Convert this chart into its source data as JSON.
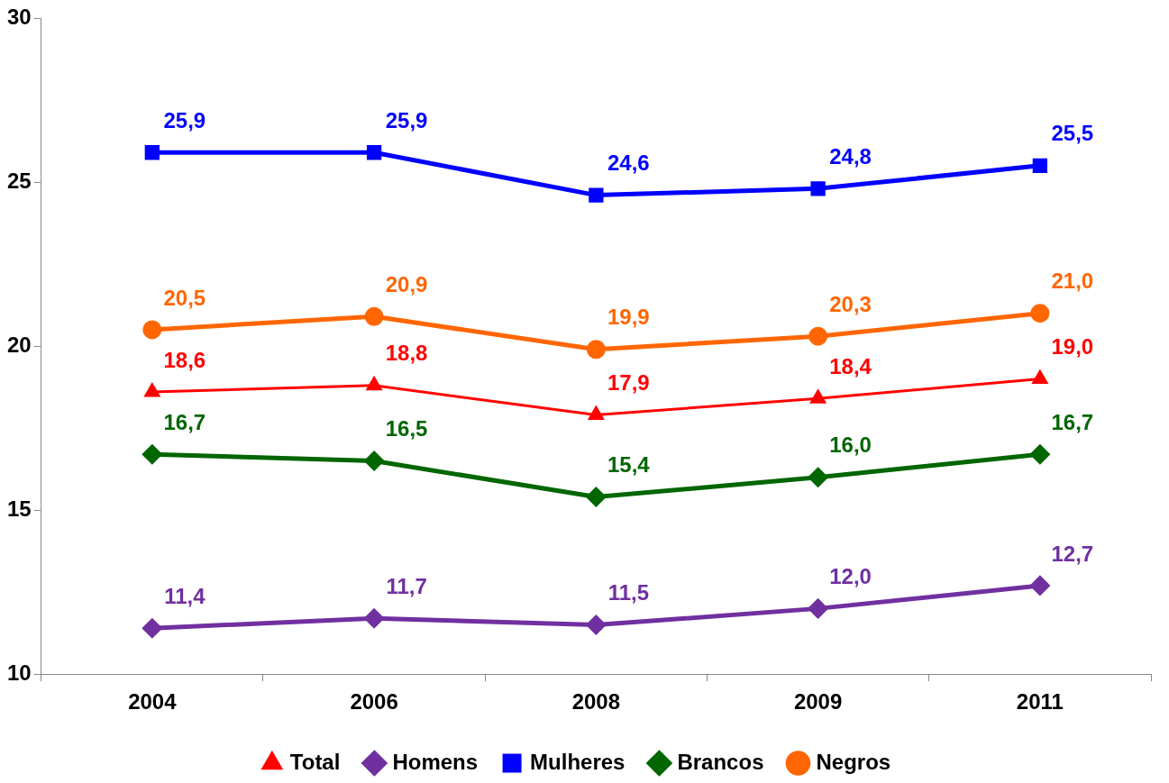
{
  "chart_data": {
    "type": "line",
    "categories": [
      "2004",
      "2006",
      "2008",
      "2009",
      "2011"
    ],
    "series": [
      {
        "name": "Total",
        "color": "#ff0000",
        "marker": "triangle",
        "values": [
          18.6,
          18.8,
          17.9,
          18.4,
          19.0
        ],
        "value_labels": [
          "18,6",
          "18,8",
          "17,9",
          "18,4",
          "19,0"
        ]
      },
      {
        "name": "Homens",
        "color": "#7030a0",
        "marker": "diamond",
        "values": [
          11.4,
          11.7,
          11.5,
          12.0,
          12.7
        ],
        "value_labels": [
          "11,4",
          "11,7",
          "11,5",
          "12,0",
          "12,7"
        ]
      },
      {
        "name": "Mulheres",
        "color": "#0000ff",
        "marker": "square",
        "values": [
          25.9,
          25.9,
          24.6,
          24.8,
          25.5
        ],
        "value_labels": [
          "25,9",
          "25,9",
          "24,6",
          "24,8",
          "25,5"
        ]
      },
      {
        "name": "Brancos",
        "color": "#006600",
        "marker": "diamond",
        "values": [
          16.7,
          16.5,
          15.4,
          16.0,
          16.7
        ],
        "value_labels": [
          "16,7",
          "16,5",
          "15,4",
          "16,0",
          "16,7"
        ]
      },
      {
        "name": "Negros",
        "color": "#ff6600",
        "marker": "circle",
        "values": [
          20.5,
          20.9,
          19.9,
          20.3,
          21.0
        ],
        "value_labels": [
          "20,5",
          "20,9",
          "19,9",
          "20,3",
          "21,0"
        ]
      }
    ],
    "ylim": [
      10,
      30
    ],
    "yticks": [
      10,
      15,
      20,
      25,
      30
    ],
    "grid": false,
    "legend": "bottom",
    "line_style": "solid"
  }
}
